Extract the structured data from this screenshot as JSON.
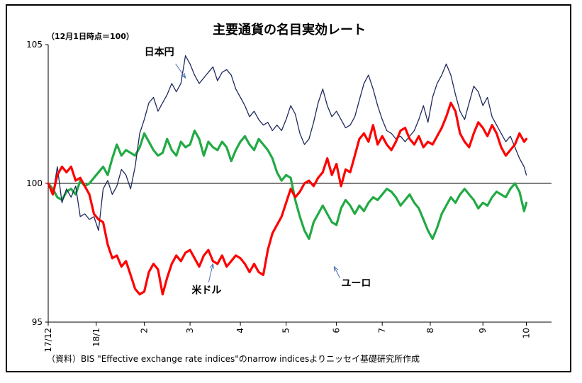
{
  "chart_data": {
    "type": "line",
    "title": "主要通貨の名目実効レート",
    "unit_note": "（12月1日時点＝100）",
    "source": "（資料）BIS \"Effective exchange rate indices\"のnarrow  indicesよりニッセイ基礎研究所作成",
    "ylim": [
      95,
      105
    ],
    "yticks": [
      "105",
      "100",
      "95"
    ],
    "xlim": [
      0,
      220
    ],
    "x_ticks": [
      {
        "x": 0,
        "label": "17/12"
      },
      {
        "x": 21,
        "label": "18/1"
      },
      {
        "x": 42,
        "label": "2"
      },
      {
        "x": 62,
        "label": "3"
      },
      {
        "x": 84,
        "label": "4"
      },
      {
        "x": 104,
        "label": "5"
      },
      {
        "x": 126,
        "label": "6"
      },
      {
        "x": 146,
        "label": "7"
      },
      {
        "x": 167,
        "label": "8"
      },
      {
        "x": 190,
        "label": "9"
      },
      {
        "x": 209,
        "label": "10"
      }
    ],
    "reference_line": 100,
    "annotations": [
      {
        "label": "日本円",
        "series": "jpy",
        "point_x": 60,
        "point_y": 103.8
      },
      {
        "label": "米ドル",
        "series": "usd",
        "point_x": 72,
        "point_y": 97.1
      },
      {
        "label": "ユーロ",
        "series": "eur",
        "point_x": 125,
        "point_y": 97.0
      }
    ],
    "series": [
      {
        "key": "jpy",
        "name": "日本円",
        "color": "#1f2a5c",
        "x": [
          0,
          2,
          4,
          6,
          8,
          10,
          12,
          14,
          16,
          18,
          20,
          22,
          24,
          26,
          28,
          30,
          32,
          34,
          36,
          38,
          40,
          42,
          44,
          46,
          48,
          50,
          52,
          54,
          56,
          58,
          60,
          62,
          64,
          66,
          68,
          70,
          72,
          74,
          76,
          78,
          80,
          82,
          84,
          86,
          88,
          90,
          92,
          94,
          96,
          98,
          100,
          102,
          104,
          106,
          108,
          110,
          112,
          114,
          116,
          118,
          120,
          122,
          124,
          126,
          128,
          130,
          132,
          134,
          136,
          138,
          140,
          142,
          144,
          146,
          148,
          150,
          152,
          154,
          156,
          158,
          160,
          162,
          164,
          166,
          168,
          170,
          172,
          174,
          176,
          178,
          180,
          182,
          184,
          186,
          188,
          190,
          192,
          194,
          196,
          198,
          200,
          202,
          204,
          206,
          208,
          209
        ],
        "values": [
          100.0,
          99.6,
          100.6,
          99.3,
          99.8,
          99.5,
          99.9,
          98.8,
          98.9,
          98.7,
          98.8,
          98.3,
          99.8,
          100.1,
          99.6,
          99.9,
          100.5,
          100.3,
          99.8,
          100.6,
          101.8,
          102.3,
          102.9,
          103.1,
          102.6,
          102.9,
          103.2,
          103.6,
          103.3,
          103.6,
          104.6,
          104.3,
          103.9,
          103.6,
          103.8,
          104.0,
          104.2,
          103.7,
          104.0,
          104.1,
          103.9,
          103.4,
          103.1,
          102.8,
          102.4,
          102.6,
          102.3,
          102.1,
          102.2,
          101.9,
          102.1,
          101.9,
          102.3,
          102.8,
          102.5,
          101.8,
          101.4,
          101.6,
          102.2,
          102.9,
          103.4,
          102.8,
          102.4,
          102.6,
          102.3,
          102.0,
          102.1,
          102.4,
          103.0,
          103.6,
          103.9,
          103.4,
          102.8,
          102.3,
          101.9,
          101.8,
          101.6,
          101.7,
          101.5,
          101.7,
          101.9,
          102.3,
          102.8,
          102.2,
          103.1,
          103.6,
          103.9,
          104.3,
          103.9,
          103.2,
          102.6,
          102.3,
          102.9,
          103.5,
          103.3,
          102.8,
          103.1,
          102.4,
          102.1,
          101.8,
          101.5,
          101.7,
          101.3,
          100.9,
          100.6,
          100.3
        ]
      },
      {
        "key": "usd",
        "name": "米ドル",
        "color": "#ff0000",
        "x": [
          0,
          2,
          4,
          6,
          8,
          10,
          12,
          14,
          16,
          18,
          20,
          22,
          24,
          26,
          28,
          30,
          32,
          34,
          36,
          38,
          40,
          42,
          44,
          46,
          48,
          50,
          52,
          54,
          56,
          58,
          60,
          62,
          64,
          66,
          68,
          70,
          72,
          74,
          76,
          78,
          80,
          82,
          84,
          86,
          88,
          90,
          92,
          94,
          96,
          98,
          100,
          102,
          104,
          106,
          108,
          110,
          112,
          114,
          116,
          118,
          120,
          122,
          124,
          126,
          128,
          130,
          132,
          134,
          136,
          138,
          140,
          142,
          144,
          146,
          148,
          150,
          152,
          154,
          156,
          158,
          160,
          162,
          164,
          166,
          168,
          170,
          172,
          174,
          176,
          178,
          180,
          182,
          184,
          186,
          188,
          190,
          192,
          194,
          196,
          198,
          200,
          202,
          204,
          206,
          208,
          209
        ],
        "values": [
          100.0,
          99.6,
          100.3,
          100.6,
          100.4,
          100.6,
          100.1,
          100.2,
          99.9,
          99.6,
          98.9,
          98.7,
          98.6,
          97.8,
          97.3,
          97.4,
          97.0,
          97.2,
          96.7,
          96.2,
          96.0,
          96.1,
          96.8,
          97.1,
          96.9,
          96.0,
          96.6,
          97.1,
          97.4,
          97.2,
          97.5,
          97.6,
          97.3,
          97.0,
          97.4,
          97.6,
          97.2,
          97.1,
          97.4,
          97.0,
          97.2,
          97.4,
          97.3,
          97.1,
          96.8,
          97.1,
          96.8,
          96.7,
          97.6,
          98.2,
          98.5,
          98.8,
          99.3,
          99.8,
          99.5,
          99.7,
          100.0,
          100.1,
          99.9,
          100.2,
          100.4,
          100.9,
          100.3,
          100.7,
          99.9,
          100.5,
          100.4,
          101.0,
          101.6,
          101.8,
          101.5,
          102.1,
          101.4,
          101.7,
          101.4,
          101.2,
          101.5,
          101.9,
          102.0,
          101.6,
          101.4,
          101.7,
          101.3,
          101.5,
          101.4,
          101.7,
          102.0,
          102.4,
          102.9,
          102.6,
          101.8,
          101.5,
          101.3,
          101.8,
          102.2,
          102.0,
          101.7,
          102.1,
          101.8,
          101.3,
          101.0,
          101.2,
          101.4,
          101.8,
          101.5,
          101.6
        ]
      },
      {
        "key": "eur",
        "name": "ユーロ",
        "color": "#22aa44",
        "x": [
          0,
          2,
          4,
          6,
          8,
          10,
          12,
          14,
          16,
          18,
          20,
          22,
          24,
          26,
          28,
          30,
          32,
          34,
          36,
          38,
          40,
          42,
          44,
          46,
          48,
          50,
          52,
          54,
          56,
          58,
          60,
          62,
          64,
          66,
          68,
          70,
          72,
          74,
          76,
          78,
          80,
          82,
          84,
          86,
          88,
          90,
          92,
          94,
          96,
          98,
          100,
          102,
          104,
          106,
          108,
          110,
          112,
          114,
          116,
          118,
          120,
          122,
          124,
          126,
          128,
          130,
          132,
          134,
          136,
          138,
          140,
          142,
          144,
          146,
          148,
          150,
          152,
          154,
          156,
          158,
          160,
          162,
          164,
          166,
          168,
          170,
          172,
          174,
          176,
          178,
          180,
          182,
          184,
          186,
          188,
          190,
          192,
          194,
          196,
          198,
          200,
          202,
          204,
          206,
          208,
          209
        ],
        "values": [
          100.0,
          99.8,
          99.5,
          99.4,
          99.7,
          99.8,
          99.6,
          100.1,
          99.9,
          100.0,
          100.2,
          100.4,
          100.6,
          100.3,
          100.9,
          101.4,
          101.0,
          101.2,
          101.1,
          101.0,
          101.3,
          101.8,
          101.5,
          101.2,
          101.0,
          101.1,
          101.6,
          101.2,
          101.0,
          101.5,
          101.3,
          101.4,
          101.9,
          101.6,
          101.0,
          101.5,
          101.3,
          101.2,
          101.5,
          101.3,
          100.8,
          101.2,
          101.5,
          101.7,
          101.4,
          101.2,
          101.6,
          101.4,
          101.2,
          100.9,
          100.4,
          100.1,
          100.3,
          100.2,
          99.4,
          98.8,
          98.3,
          98.0,
          98.6,
          98.9,
          99.2,
          98.9,
          98.6,
          98.5,
          99.1,
          99.4,
          99.2,
          98.9,
          99.2,
          99.0,
          99.3,
          99.5,
          99.4,
          99.6,
          99.8,
          99.7,
          99.5,
          99.2,
          99.4,
          99.6,
          99.3,
          99.1,
          98.7,
          98.3,
          98.0,
          98.4,
          98.9,
          99.2,
          99.5,
          99.3,
          99.6,
          99.8,
          99.6,
          99.4,
          99.1,
          99.3,
          99.2,
          99.5,
          99.7,
          99.6,
          99.5,
          99.8,
          100.0,
          99.7,
          99.0,
          99.3
        ]
      }
    ]
  }
}
